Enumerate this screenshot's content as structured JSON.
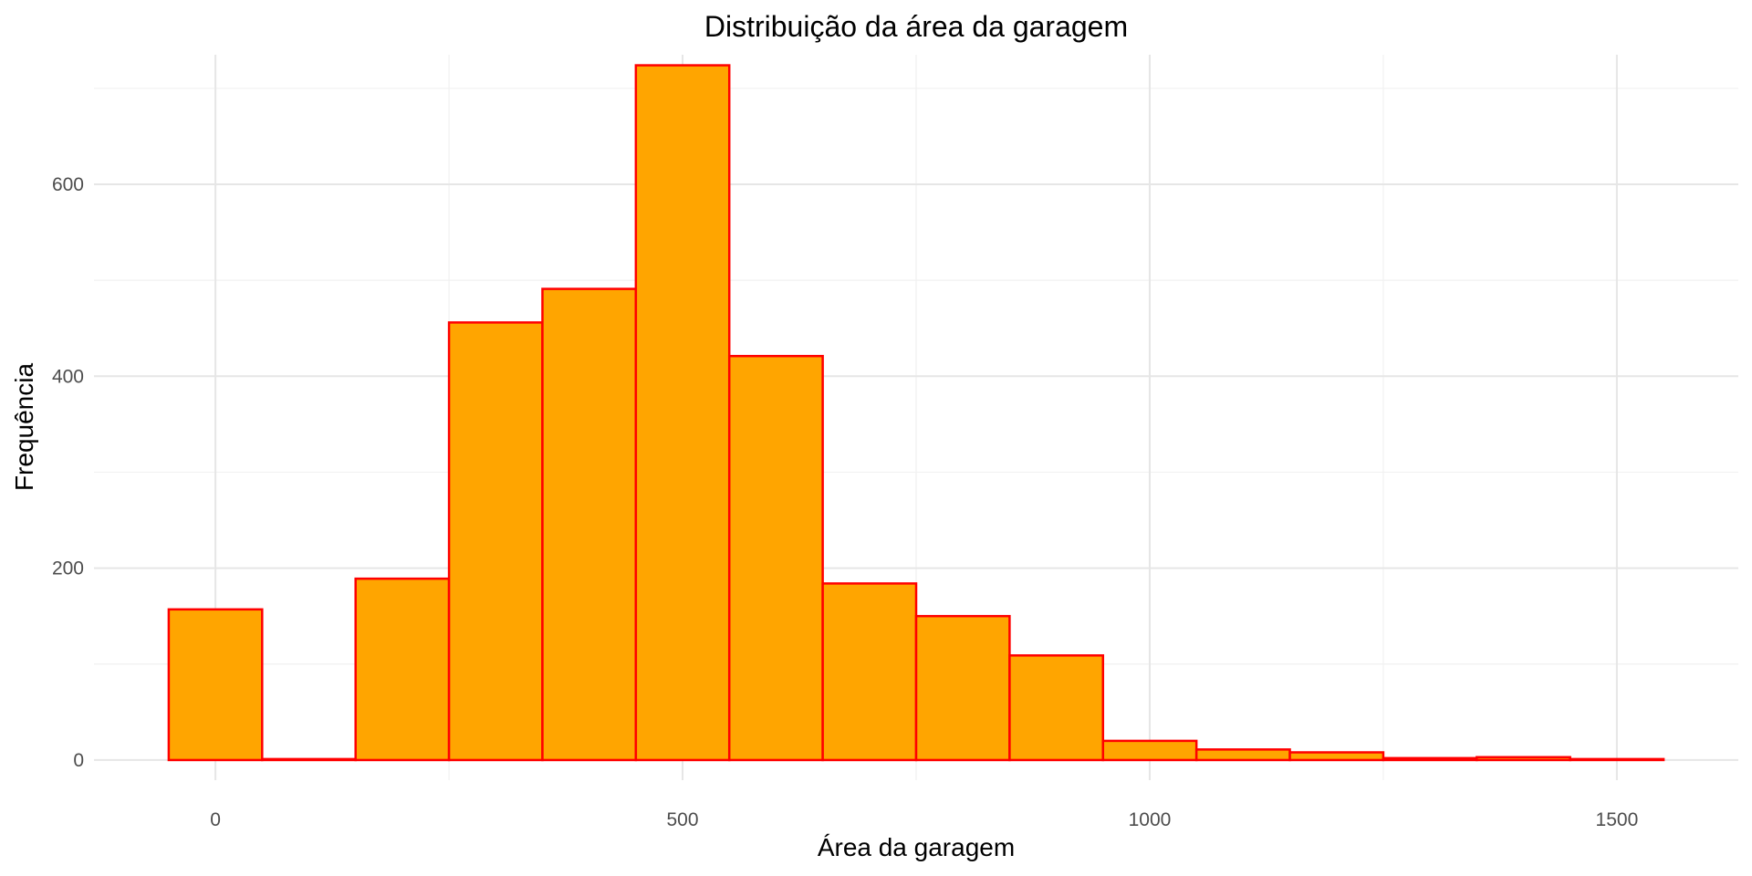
{
  "chart_data": {
    "type": "bar",
    "title": "Distribuição da área da garagem",
    "xlabel": "Área da garagem",
    "ylabel": "Frequência",
    "xlim": [
      -130,
      1630
    ],
    "ylim": [
      -21,
      735
    ],
    "x_ticks": [
      0,
      500,
      1000,
      1500
    ],
    "x_tick_labels": [
      "0",
      "500",
      "1000",
      "1500"
    ],
    "y_ticks": [
      0,
      200,
      400,
      600
    ],
    "y_tick_labels": [
      "0",
      "200",
      "400",
      "600"
    ],
    "grid": true,
    "legend": "none",
    "bin_width": 100,
    "bins": [
      {
        "start": -50,
        "end": 50,
        "count": 157
      },
      {
        "start": 50,
        "end": 150,
        "count": 1
      },
      {
        "start": 150,
        "end": 250,
        "count": 189
      },
      {
        "start": 250,
        "end": 350,
        "count": 456
      },
      {
        "start": 350,
        "end": 450,
        "count": 491
      },
      {
        "start": 450,
        "end": 550,
        "count": 724
      },
      {
        "start": 550,
        "end": 650,
        "count": 421
      },
      {
        "start": 650,
        "end": 750,
        "count": 184
      },
      {
        "start": 750,
        "end": 850,
        "count": 150
      },
      {
        "start": 850,
        "end": 950,
        "count": 109
      },
      {
        "start": 950,
        "end": 1050,
        "count": 20
      },
      {
        "start": 1050,
        "end": 1150,
        "count": 11
      },
      {
        "start": 1150,
        "end": 1250,
        "count": 8
      },
      {
        "start": 1250,
        "end": 1350,
        "count": 2
      },
      {
        "start": 1350,
        "end": 1450,
        "count": 3
      },
      {
        "start": 1450,
        "end": 1550,
        "count": 1
      }
    ],
    "colors": {
      "fill": "#FFA500",
      "outline": "#FF0000"
    }
  }
}
